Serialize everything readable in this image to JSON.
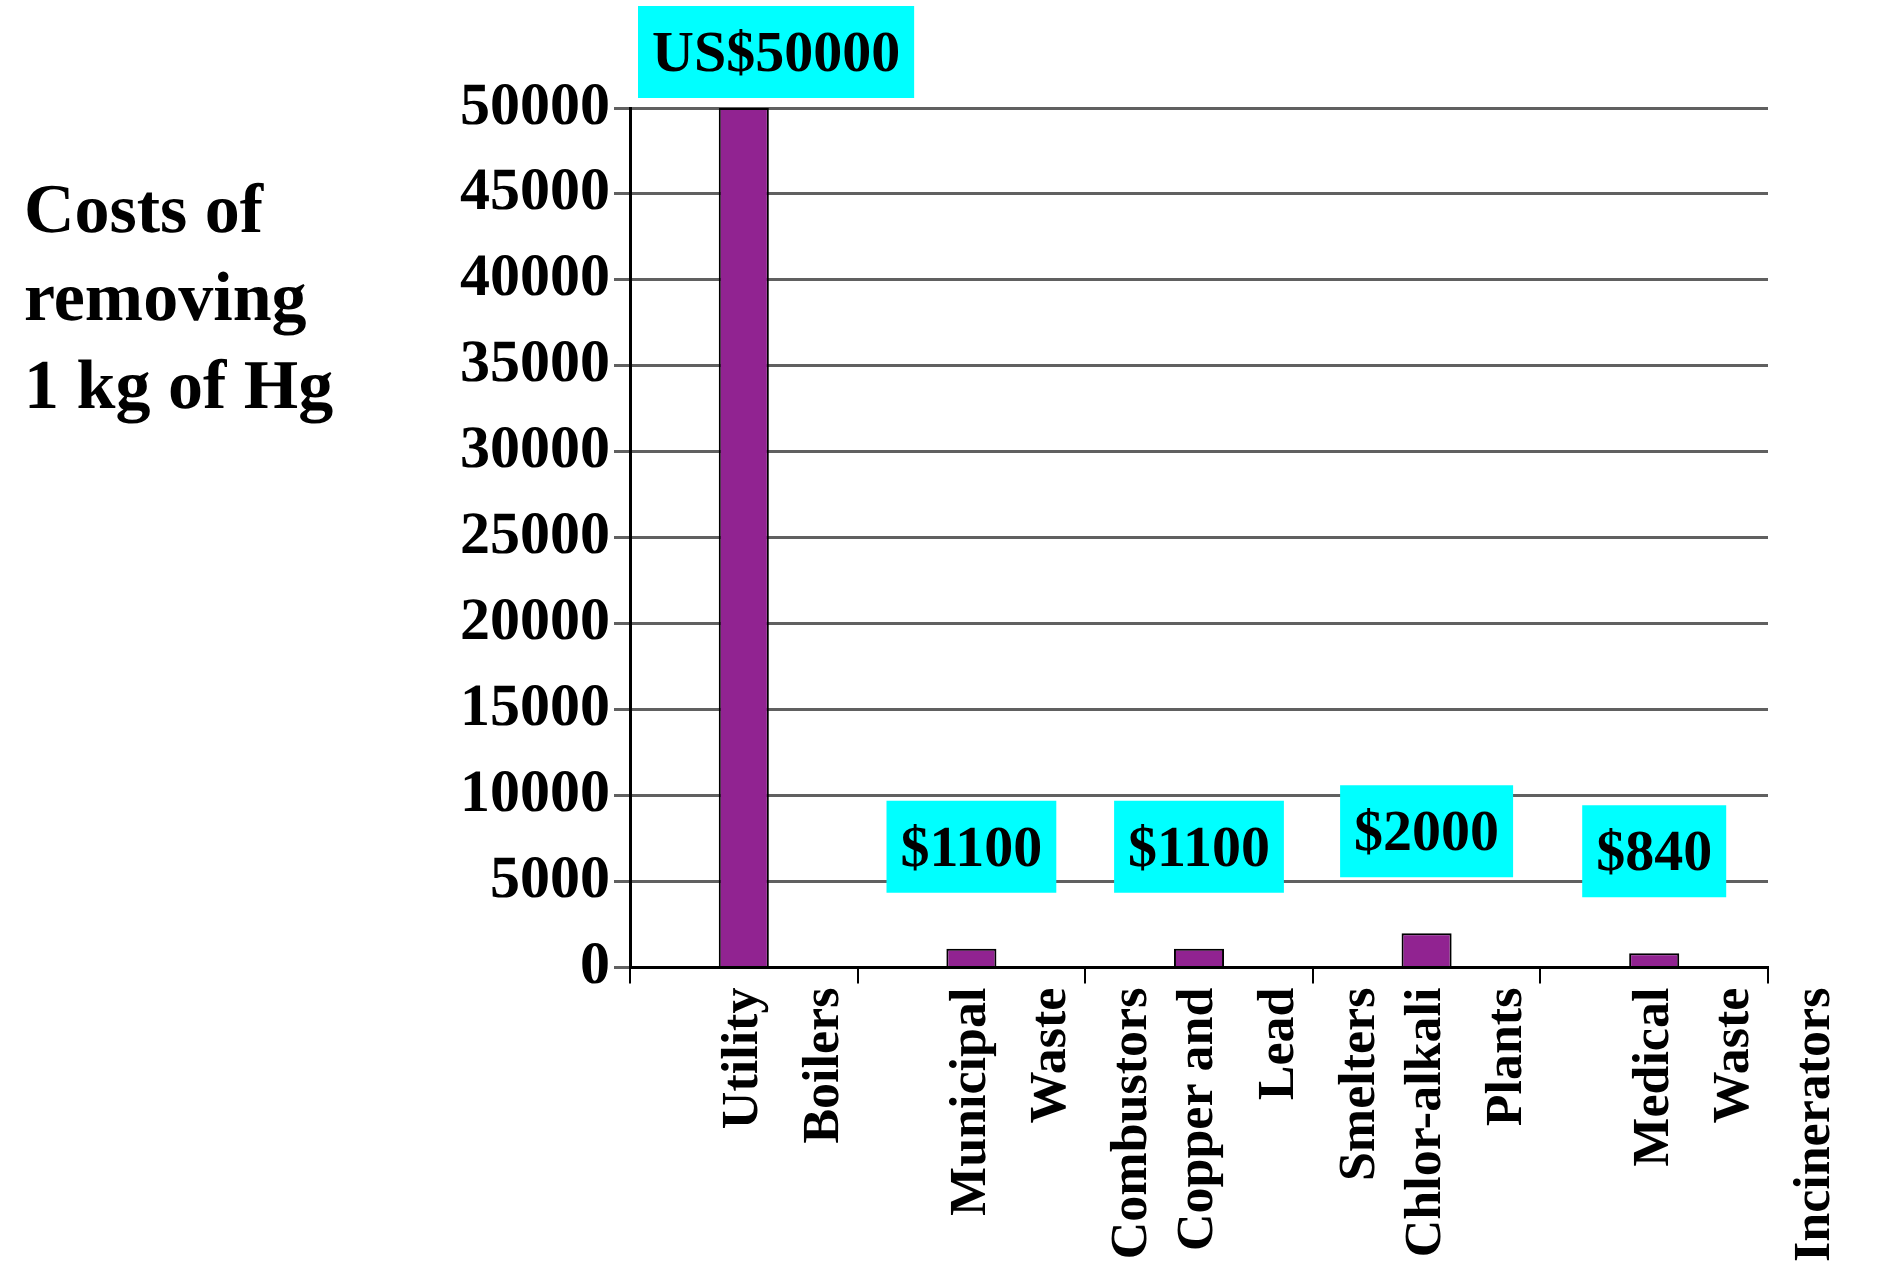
{
  "chart_data": {
    "type": "bar",
    "ylabel": "Costs of removing 1 kg of Hg",
    "categories": [
      "Utility Boilers",
      "Municipal Waste Combustors",
      "Copper and Lead Smelters",
      "Chlor-alkali Plants",
      "Medical Waste Incinerators"
    ],
    "values": [
      50000,
      1100,
      1100,
      2000,
      840
    ],
    "value_labels": [
      "US$50000",
      "$1100",
      "$1100",
      "$2000",
      "$840"
    ],
    "color": "#912391",
    "ylim": [
      0,
      50000
    ],
    "yticks": [
      0,
      5000,
      10000,
      15000,
      20000,
      25000,
      30000,
      35000,
      40000,
      45000,
      50000
    ],
    "grid": "y"
  }
}
